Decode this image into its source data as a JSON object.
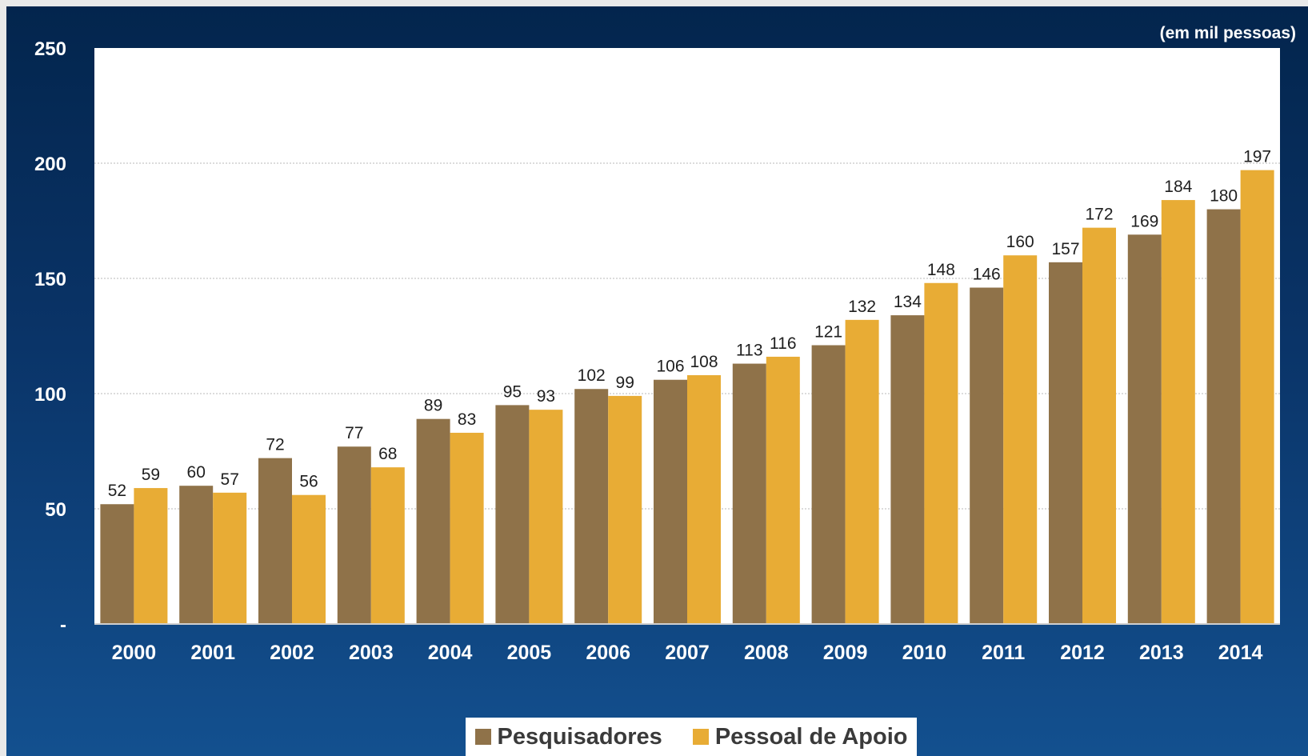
{
  "colors": {
    "pesquisadores": "#8f7249",
    "apoio": "#e8ac35",
    "plot_bg": "#ffffff",
    "grid": "#b9b9b9"
  },
  "chart_data": {
    "type": "bar",
    "unit_note": "(em mil pessoas)",
    "categories": [
      "2000",
      "2001",
      "2002",
      "2003",
      "2004",
      "2005",
      "2006",
      "2007",
      "2008",
      "2009",
      "2010",
      "2011",
      "2012",
      "2013",
      "2014"
    ],
    "series": [
      {
        "name": "Pesquisadores",
        "values": [
          52,
          60,
          72,
          77,
          89,
          95,
          102,
          106,
          113,
          121,
          134,
          146,
          157,
          169,
          180
        ]
      },
      {
        "name": "Pessoal de Apoio",
        "values": [
          59,
          57,
          56,
          68,
          83,
          93,
          99,
          108,
          116,
          132,
          148,
          160,
          172,
          184,
          197
        ]
      }
    ],
    "ylim": [
      0,
      250
    ],
    "yticks": [
      0,
      50,
      100,
      150,
      200,
      250
    ],
    "ytick_labels": [
      "-",
      "50",
      "100",
      "150",
      "200",
      "250"
    ],
    "grid": true,
    "legend_position": "bottom-center"
  }
}
